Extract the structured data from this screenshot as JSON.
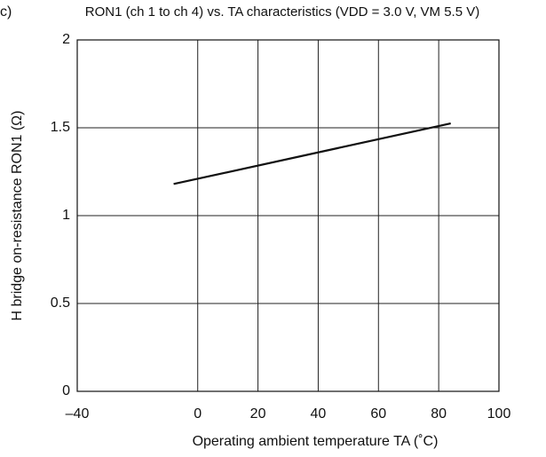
{
  "panel_label": "c)",
  "chart_data": {
    "type": "line",
    "title": "RON1 (ch 1 to ch 4) vs. TA characteristics (VDD = 3.0 V, VM 5.5 V)",
    "x_label": "Operating ambient temperature TA (˚C)",
    "y_label": "H bridge on-resistance RON1 (Ω)",
    "x": [
      -8,
      84
    ],
    "series": [
      {
        "color": "#111111",
        "values": [
          1.18,
          1.525
        ]
      }
    ],
    "xlim": [
      -40,
      100
    ],
    "xticks": [
      {
        "value": -40,
        "label": "–40"
      },
      0,
      20,
      40,
      60,
      80,
      100
    ],
    "ylim": [
      0,
      2
    ],
    "yticks": [
      0,
      0.5,
      1,
      1.5,
      2
    ],
    "grid": true
  }
}
